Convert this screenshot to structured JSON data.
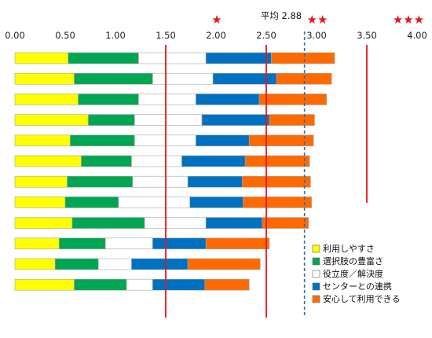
{
  "chart_data": {
    "type": "bar",
    "orientation": "horizontal",
    "stacked": true,
    "xlim": [
      0,
      4
    ],
    "x_ticks": [
      "0.00",
      "0.50",
      "1.00",
      "1.50",
      "2.00",
      "2.50",
      "3.00",
      "3.50",
      "4.00"
    ],
    "series": [
      {
        "name": "利用しやすさ",
        "color": "#ffff00",
        "values": [
          0.53,
          0.59,
          0.63,
          0.73,
          0.55,
          0.66,
          0.52,
          0.5,
          0.57,
          0.44,
          0.4,
          0.59
        ]
      },
      {
        "name": "選択肢の豊富さ",
        "color": "#00a651",
        "values": [
          0.7,
          0.78,
          0.6,
          0.46,
          0.64,
          0.5,
          0.65,
          0.53,
          0.72,
          0.46,
          0.43,
          0.52
        ]
      },
      {
        "name": "役立度／解決度",
        "color": "#ffffff",
        "values": [
          0.67,
          0.6,
          0.57,
          0.67,
          0.61,
          0.5,
          0.55,
          0.71,
          0.61,
          0.47,
          0.33,
          0.26
        ]
      },
      {
        "name": "センターとの連携",
        "color": "#0070c0",
        "values": [
          0.65,
          0.63,
          0.63,
          0.67,
          0.53,
          0.63,
          0.54,
          0.53,
          0.56,
          0.53,
          0.56,
          0.52
        ]
      },
      {
        "name": "安心して利用できる",
        "color": "#ff6a00",
        "values": [
          0.63,
          0.55,
          0.67,
          0.45,
          0.64,
          0.64,
          0.68,
          0.68,
          0.46,
          0.63,
          0.72,
          0.44
        ]
      }
    ],
    "reference_lines": [
      {
        "x": 1.5,
        "style": "solid",
        "color": "#e8141e",
        "label": ""
      },
      {
        "x": 2.5,
        "style": "solid",
        "color": "#e8141e",
        "label": "★"
      },
      {
        "x": 2.88,
        "style": "dashed",
        "color": "#2e6db5",
        "label": "平均 2.88"
      },
      {
        "x": 3.5,
        "style": "solid",
        "color": "#e8141e",
        "label": ""
      }
    ],
    "rating_labels": [
      {
        "x": 2.0,
        "text": "★"
      },
      {
        "x": 3.0,
        "text": "★★"
      },
      {
        "x": 4.0,
        "text": "★★★"
      }
    ],
    "avg_label": "平均 2.88",
    "legend_position": "right-bottom",
    "grid": false
  }
}
